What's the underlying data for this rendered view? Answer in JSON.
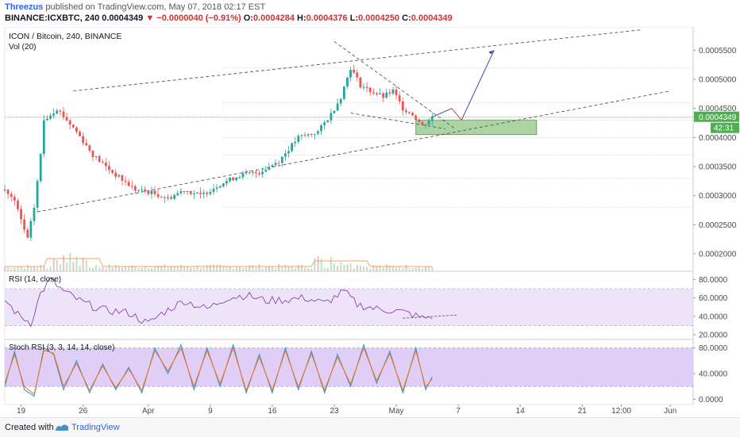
{
  "header": {
    "author": "Threezus",
    "published": "published on TradingView.com, May 07, 2018 02:17 EST",
    "symbol_line": "BINANCE:ICXBTC, 240",
    "last": "0.0004349",
    "change_arrow": "▼",
    "change": "−0.0000040 (−0.91%)",
    "open_label": "O:",
    "open": "0.0004284",
    "high_label": "H:",
    "high": "0.0004376",
    "low_label": "L:",
    "low": "0.0004250",
    "close_label": "C:",
    "close": "0.0004349"
  },
  "footer": {
    "created_with": "Created with",
    "brand": "TradingView"
  },
  "chart_data": [
    {
      "type": "candlestick",
      "title": "ICON / Bitcoin, 240, BINANCE",
      "volume_label": "Vol (20)",
      "ylim": [
        0.00017,
        0.00059
      ],
      "yticks": [
        "0.0005500",
        "0.0005000",
        "0.0004500",
        "0.0004000",
        "0.0003500",
        "0.0003000",
        "0.0002500",
        "0.0002000"
      ],
      "ytick_values": [
        0.00055,
        0.0005,
        0.00045,
        0.0004,
        0.00035,
        0.0003,
        0.00025,
        0.0002
      ],
      "last_price": "0.0004349",
      "countdown": "42:31",
      "x_ticks": [
        "19",
        "26",
        "Apr",
        "9",
        "16",
        "23",
        "May",
        "7",
        "14",
        "21",
        "12:00",
        "Jun"
      ],
      "x_tick_index": [
        5,
        24,
        44,
        63,
        82,
        101,
        120,
        139,
        158,
        177,
        189,
        204
      ],
      "anchors": [
        [
          0,
          0.00031
        ],
        [
          3,
          0.00029
        ],
        [
          7,
          0.000225
        ],
        [
          9,
          0.00028
        ],
        [
          11,
          0.00037
        ],
        [
          12,
          0.00043
        ],
        [
          14,
          0.00044
        ],
        [
          16,
          0.00045
        ],
        [
          19,
          0.00043
        ],
        [
          22,
          0.00041
        ],
        [
          27,
          0.00037
        ],
        [
          33,
          0.00034
        ],
        [
          40,
          0.00031
        ],
        [
          45,
          0.000305
        ],
        [
          50,
          0.000295
        ],
        [
          55,
          0.00031
        ],
        [
          60,
          0.0003
        ],
        [
          66,
          0.00032
        ],
        [
          72,
          0.000335
        ],
        [
          78,
          0.00034
        ],
        [
          84,
          0.00036
        ],
        [
          90,
          0.0004
        ],
        [
          96,
          0.00041
        ],
        [
          100,
          0.00044
        ],
        [
          103,
          0.00047
        ],
        [
          106,
          0.00052
        ],
        [
          109,
          0.00049
        ],
        [
          112,
          0.00048
        ],
        [
          116,
          0.00047
        ],
        [
          119,
          0.00048
        ],
        [
          122,
          0.00045
        ],
        [
          125,
          0.00044
        ],
        [
          128,
          0.00042
        ],
        [
          131,
          0.000435
        ]
      ],
      "annotations": {
        "resistance_levels": [
          0.00052,
          0.00046,
          0.00043,
          0.0004,
          0.00037,
          0.00033,
          0.00028
        ],
        "support_zone": [
          0.000405,
          0.00043
        ],
        "projection": [
          [
            131,
            0.000435
          ],
          [
            137,
            0.00045
          ],
          [
            140,
            0.00043
          ],
          [
            150,
            0.00055
          ]
        ]
      }
    },
    {
      "type": "line",
      "title": "RSI (14, close)",
      "ylim": [
        15,
        88
      ],
      "yticks": [
        "80.0000",
        "60.0000",
        "40.0000",
        "20.0000"
      ],
      "ytick_values": [
        80,
        60,
        40,
        20
      ],
      "band": [
        30,
        70
      ],
      "anchors": [
        [
          0,
          58
        ],
        [
          4,
          42
        ],
        [
          8,
          33
        ],
        [
          11,
          65
        ],
        [
          14,
          80
        ],
        [
          18,
          67
        ],
        [
          24,
          55
        ],
        [
          30,
          47
        ],
        [
          38,
          44
        ],
        [
          44,
          32
        ],
        [
          48,
          43
        ],
        [
          55,
          57
        ],
        [
          62,
          48
        ],
        [
          68,
          60
        ],
        [
          74,
          63
        ],
        [
          80,
          57
        ],
        [
          86,
          58
        ],
        [
          92,
          60
        ],
        [
          98,
          54
        ],
        [
          104,
          67
        ],
        [
          108,
          53
        ],
        [
          114,
          48
        ],
        [
          120,
          46
        ],
        [
          124,
          43
        ],
        [
          128,
          38
        ],
        [
          131,
          40
        ]
      ]
    },
    {
      "type": "line",
      "title": "Stoch RSI (3, 3, 14, 14, close)",
      "ylim": [
        -8,
        92
      ],
      "yticks": [
        "80.0000",
        "40.0000",
        "0.0000"
      ],
      "ytick_values": [
        80,
        40,
        0
      ],
      "band": [
        20,
        80
      ],
      "series": [
        {
          "color": "#2196f3",
          "anchors": [
            [
              0,
              20
            ],
            [
              3,
              75
            ],
            [
              6,
              15
            ],
            [
              9,
              5
            ],
            [
              12,
              80
            ],
            [
              15,
              70
            ],
            [
              18,
              15
            ],
            [
              22,
              60
            ],
            [
              26,
              10
            ],
            [
              30,
              55
            ],
            [
              34,
              15
            ],
            [
              38,
              50
            ],
            [
              42,
              10
            ],
            [
              46,
              80
            ],
            [
              50,
              40
            ],
            [
              54,
              85
            ],
            [
              58,
              15
            ],
            [
              62,
              80
            ],
            [
              66,
              20
            ],
            [
              70,
              85
            ],
            [
              74,
              10
            ],
            [
              78,
              70
            ],
            [
              82,
              10
            ],
            [
              86,
              80
            ],
            [
              90,
              15
            ],
            [
              94,
              75
            ],
            [
              98,
              10
            ],
            [
              102,
              70
            ],
            [
              106,
              20
            ],
            [
              110,
              85
            ],
            [
              114,
              25
            ],
            [
              118,
              75
            ],
            [
              122,
              10
            ],
            [
              126,
              80
            ],
            [
              129,
              15
            ],
            [
              131,
              35
            ]
          ]
        },
        {
          "color": "#ff6f00",
          "anchors": [
            [
              0,
              25
            ],
            [
              3,
              70
            ],
            [
              6,
              20
            ],
            [
              9,
              8
            ],
            [
              12,
              76
            ],
            [
              15,
              72
            ],
            [
              18,
              20
            ],
            [
              22,
              56
            ],
            [
              26,
              14
            ],
            [
              30,
              52
            ],
            [
              34,
              18
            ],
            [
              38,
              47
            ],
            [
              42,
              14
            ],
            [
              46,
              76
            ],
            [
              50,
              44
            ],
            [
              54,
              80
            ],
            [
              58,
              20
            ],
            [
              62,
              76
            ],
            [
              66,
              24
            ],
            [
              70,
              80
            ],
            [
              74,
              14
            ],
            [
              78,
              66
            ],
            [
              82,
              14
            ],
            [
              86,
              76
            ],
            [
              90,
              19
            ],
            [
              94,
              71
            ],
            [
              98,
              14
            ],
            [
              102,
              66
            ],
            [
              106,
              24
            ],
            [
              110,
              80
            ],
            [
              114,
              29
            ],
            [
              118,
              71
            ],
            [
              122,
              14
            ],
            [
              126,
              76
            ],
            [
              129,
              19
            ],
            [
              131,
              32
            ]
          ]
        }
      ]
    }
  ]
}
